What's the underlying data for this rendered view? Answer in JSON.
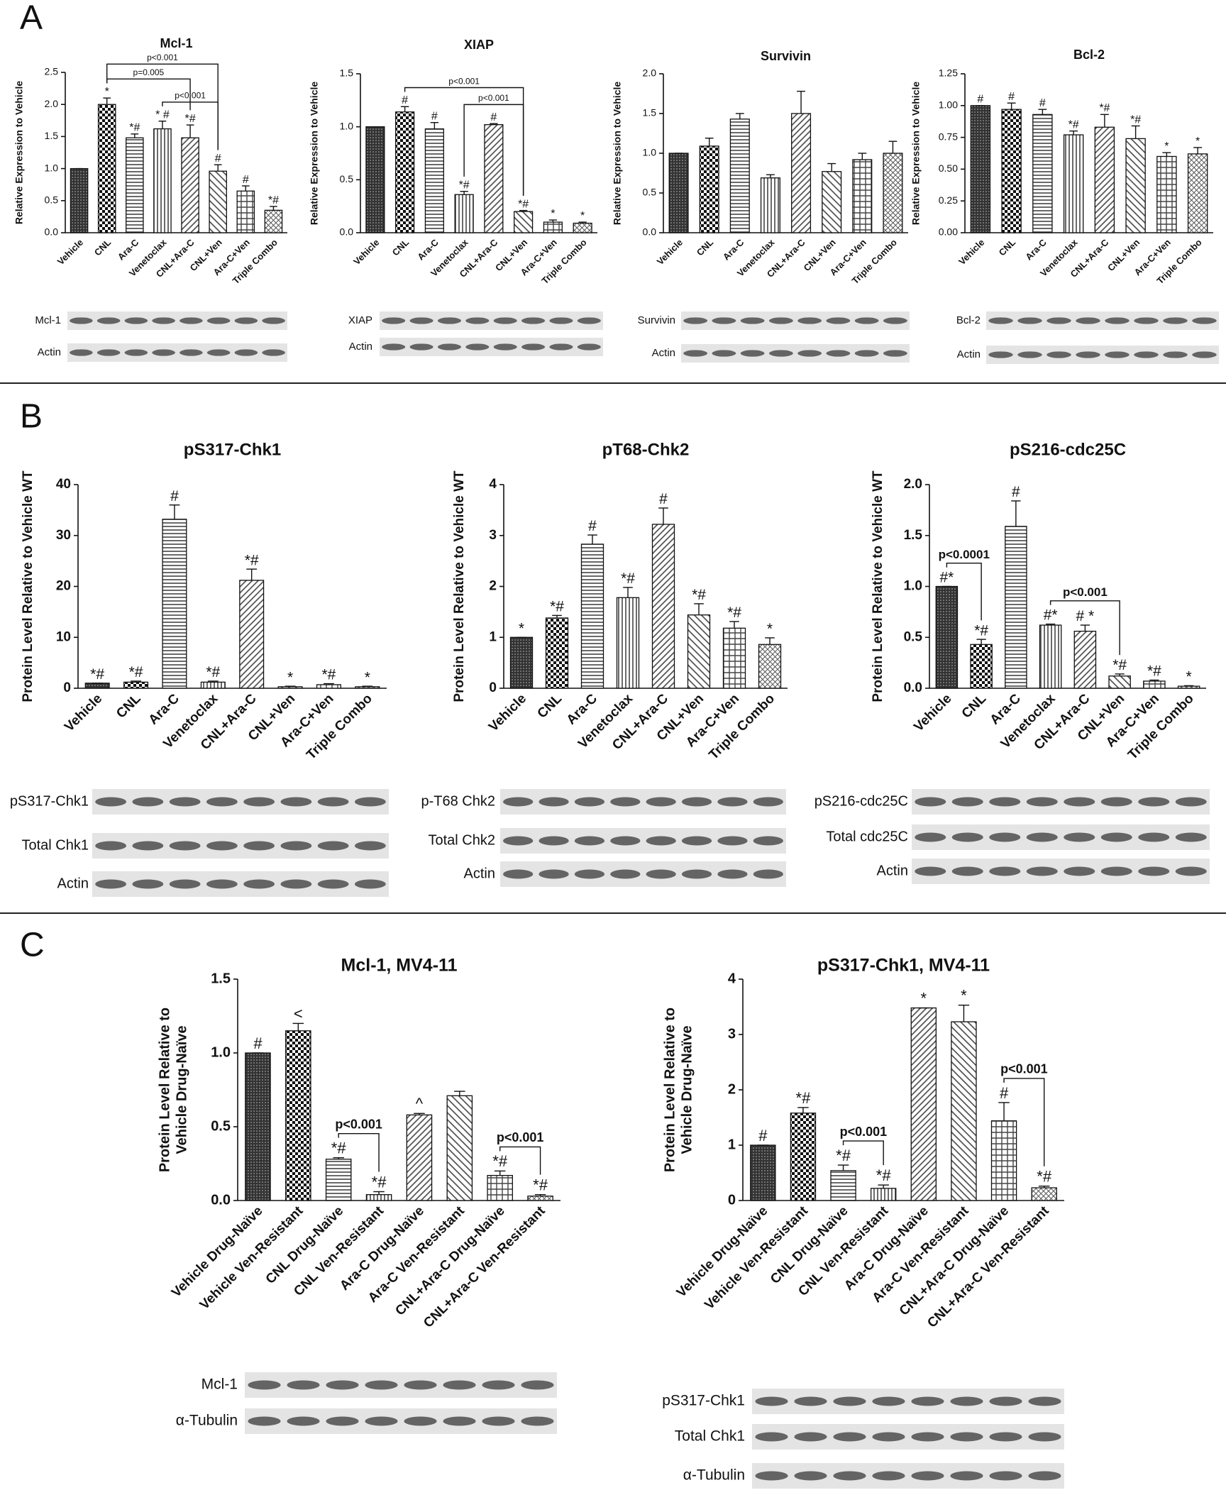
{
  "panels": [
    "A",
    "B",
    "C"
  ],
  "chart_data": [
    {
      "type": "bar",
      "title": "Mcl-1",
      "ylabel": [
        "Relative Expression to Vehicle"
      ],
      "categories": [
        "Vehicle",
        "CNL",
        "Ara-C",
        "Venetoclax",
        "CNL+Ara-C",
        "CNL+Ven",
        "Ara-C+Ven",
        "Triple Combo"
      ],
      "values": [
        1.0,
        2.0,
        1.48,
        1.62,
        1.48,
        0.96,
        0.65,
        0.35
      ],
      "errors": [
        0,
        0.1,
        0.06,
        0.12,
        0.2,
        0.1,
        0.08,
        0.06
      ],
      "annotations": [
        null,
        "*",
        "*#",
        "* #",
        "*#",
        "#",
        "#",
        "*#"
      ],
      "brackets": [
        {
          "from": 3,
          "to": 5,
          "label": "p<0.001"
        },
        {
          "from": 1,
          "to": 4,
          "label": "p=0.005"
        },
        {
          "from": 1,
          "to": 5,
          "label": "p<0.001"
        }
      ],
      "ylim": [
        0,
        2.5
      ],
      "yticks": [
        {
          "value": 0,
          "label": "0.0"
        },
        0.5,
        {
          "value": 1,
          "label": "1.0"
        },
        1.5,
        {
          "value": 2,
          "label": "2.0"
        },
        2.5
      ],
      "blots": [
        "Mcl-1",
        "Actin"
      ]
    },
    {
      "type": "bar",
      "title": "XIAP",
      "ylabel": [
        "Relative Expression to Vehicle"
      ],
      "categories": [
        "Vehicle",
        "CNL",
        "Ara-C",
        "Venetoclax",
        "CNL+Ara-C",
        "CNL+Ven",
        "Ara-C+Ven",
        "Triple Combo"
      ],
      "values": [
        1.0,
        1.14,
        0.98,
        0.36,
        1.02,
        0.2,
        0.1,
        0.09
      ],
      "errors": [
        0,
        0.05,
        0.06,
        0.03,
        0.01,
        0.01,
        0.02,
        0.01
      ],
      "annotations": [
        null,
        "#",
        "#",
        "*#",
        "#",
        "*#",
        "*",
        "*"
      ],
      "brackets": [
        {
          "from": 3,
          "to": 5,
          "label": "p<0.001"
        },
        {
          "from": 1,
          "to": 5,
          "label": "p<0.001"
        }
      ],
      "ylim": [
        0,
        1.5
      ],
      "yticks": [
        {
          "value": 0,
          "label": "0.0"
        },
        0.5,
        {
          "value": 1,
          "label": "1.0"
        },
        1.5
      ],
      "blots": [
        "XIAP",
        "Actin"
      ]
    },
    {
      "type": "bar",
      "title": "Survivin",
      "ylabel": [
        "Relative Expression to Vehicle"
      ],
      "categories": [
        "Vehicle",
        "CNL",
        "Ara-C",
        "Venetoclax",
        "CNL+Ara-C",
        "CNL+Ven",
        "Ara-C+Ven",
        "Triple Combo"
      ],
      "values": [
        1.0,
        1.09,
        1.43,
        0.69,
        1.5,
        0.77,
        0.92,
        1.0
      ],
      "errors": [
        0,
        0.1,
        0.07,
        0.04,
        0.28,
        0.1,
        0.08,
        0.15
      ],
      "annotations": [
        null,
        null,
        null,
        null,
        null,
        null,
        null,
        null
      ],
      "brackets": [],
      "ylim": [
        0,
        2
      ],
      "yticks": [
        {
          "value": 0,
          "label": "0.0"
        },
        0.5,
        {
          "value": 1,
          "label": "1.0"
        },
        1.5,
        {
          "value": 2,
          "label": "2.0"
        }
      ],
      "blots": [
        "Survivin",
        "Actin"
      ]
    },
    {
      "type": "bar",
      "title": "Bcl-2",
      "ylabel": [
        "Relative Expression to Vehicle"
      ],
      "categories": [
        "Vehicle",
        "CNL",
        "Ara-C",
        "Venetoclax",
        "CNL+Ara-C",
        "CNL+Ven",
        "Ara-C+Ven",
        "Triple Combo"
      ],
      "values": [
        1.0,
        0.97,
        0.93,
        0.77,
        0.83,
        0.74,
        0.6,
        0.62
      ],
      "errors": [
        0,
        0.05,
        0.04,
        0.03,
        0.1,
        0.1,
        0.03,
        0.05
      ],
      "annotations": [
        "#",
        "#",
        "#",
        "*#",
        "*#",
        "*#",
        "*",
        "*"
      ],
      "brackets": [],
      "ylim": [
        0,
        1.25
      ],
      "yticks": [
        {
          "value": 0,
          "label": "0.00"
        },
        0.25,
        {
          "value": 0.5,
          "label": "0.50"
        },
        0.75,
        {
          "value": 1,
          "label": "1.00"
        },
        1.25
      ],
      "blots": [
        "Bcl-2",
        "Actin"
      ]
    },
    {
      "type": "bar",
      "title": "pS317-Chk1",
      "ylabel": [
        "Protein Level Relative to Vehicle WT"
      ],
      "categories": [
        "Vehicle",
        "CNL",
        "Ara-C",
        "Venetoclax",
        "CNL+Ara-C",
        "CNL+Ven",
        "Ara-C+Ven",
        "Triple Combo"
      ],
      "values": [
        1.0,
        1.2,
        33.2,
        1.2,
        21.2,
        0.3,
        0.7,
        0.3
      ],
      "errors": [
        0,
        0.2,
        2.8,
        0.2,
        2.2,
        0.1,
        0.2,
        0.1
      ],
      "annotations": [
        "*#",
        "*#",
        "#",
        "*#",
        "*#",
        "*",
        "*#",
        "*"
      ],
      "brackets": [],
      "ylim": [
        0,
        40
      ],
      "yticks": [
        0,
        10,
        20,
        30,
        40
      ],
      "blots": [
        "pS317-Chk1",
        "Total Chk1",
        "Actin"
      ]
    },
    {
      "type": "bar",
      "title": "pT68-Chk2",
      "ylabel": [
        "Protein Level Relative to Vehicle WT"
      ],
      "categories": [
        "Vehicle",
        "CNL",
        "Ara-C",
        "Venetoclax",
        "CNL+Ara-C",
        "CNL+Ven",
        "Ara-C+Ven",
        "Triple Combo"
      ],
      "values": [
        1.0,
        1.38,
        2.83,
        1.78,
        3.22,
        1.44,
        1.18,
        0.86
      ],
      "errors": [
        0,
        0.05,
        0.18,
        0.2,
        0.32,
        0.22,
        0.13,
        0.13
      ],
      "annotations": [
        "*",
        "*#",
        "#",
        "*#",
        "#",
        "*#",
        "*#",
        "*"
      ],
      "brackets": [],
      "ylim": [
        0,
        4
      ],
      "yticks": [
        0,
        1,
        2,
        3,
        4
      ],
      "blots": [
        "p-T68 Chk2",
        "Total Chk2",
        "Actin"
      ]
    },
    {
      "type": "bar",
      "title": "pS216-cdc25C",
      "ylabel": [
        "Protein Level Relative to Vehicle WT"
      ],
      "categories": [
        "Vehicle",
        "CNL",
        "Ara-C",
        "Venetoclax",
        "CNL+Ara-C",
        "CNL+Ven",
        "Ara-C+Ven",
        "Triple Combo"
      ],
      "values": [
        1.0,
        0.43,
        1.59,
        0.62,
        0.56,
        0.12,
        0.07,
        0.02
      ],
      "errors": [
        0,
        0.05,
        0.25,
        0.01,
        0.06,
        0.02,
        0.01,
        0.005
      ],
      "annotations": [
        "#*",
        "*#",
        "#",
        "#*",
        "# *",
        "*#",
        "*#",
        "*"
      ],
      "brackets": [
        {
          "from": 0,
          "to": 1,
          "label": "p<0.0001"
        },
        {
          "from": 3,
          "to": 5,
          "label": "p<0.001"
        }
      ],
      "ylim": [
        0,
        2
      ],
      "yticks": [
        {
          "value": 0,
          "label": "0.0"
        },
        0.5,
        {
          "value": 1,
          "label": "1.0"
        },
        1.5,
        {
          "value": 2,
          "label": "2.0"
        }
      ],
      "blots": [
        "pS216-cdc25C",
        "Total cdc25C",
        "Actin"
      ]
    },
    {
      "type": "bar",
      "title": "Mcl-1, MV4-11",
      "ylabel": [
        "Protein Level Relative to",
        "Vehicle Drug-Naïve"
      ],
      "categories": [
        "Vehicle Drug-Naïve",
        "Vehicle Ven-Resistant",
        "CNL Drug-Naïve",
        "CNL Ven-Resistant",
        "Ara-C Drug-Naïve",
        "Ara-C Ven-Resistant",
        "CNL+Ara-C Drug-Naïve",
        "CNL+Ara-C Ven-Resistant"
      ],
      "values": [
        1.0,
        1.15,
        0.28,
        0.04,
        0.58,
        0.71,
        0.17,
        0.03
      ],
      "errors": [
        0,
        0.05,
        0.01,
        0.02,
        0.01,
        0.03,
        0.03,
        0.01
      ],
      "annotations": [
        "#",
        "<",
        "*#",
        "*#",
        "^",
        null,
        "*#",
        "*#"
      ],
      "brackets": [
        {
          "from": 2,
          "to": 3,
          "label": "p<0.001"
        },
        {
          "from": 6,
          "to": 7,
          "label": "p<0.001"
        }
      ],
      "ylim": [
        0,
        1.5
      ],
      "yticks": [
        {
          "value": 0,
          "label": "0.0"
        },
        0.5,
        {
          "value": 1,
          "label": "1.0"
        },
        1.5
      ],
      "blots": [
        "Mcl-1",
        "α-Tubulin"
      ]
    },
    {
      "type": "bar",
      "title": "pS317-Chk1, MV4-11",
      "ylabel": [
        "Protein Level Relative to",
        "Vehicle Drug-Naïve"
      ],
      "categories": [
        "Vehicle Drug-Naïve",
        "Vehicle Ven-Resistant",
        "CNL Drug-Naïve",
        "CNL Ven-Resistant",
        "Ara-C Drug-Naïve",
        "Ara-C Ven-Resistant",
        "CNL+Ara-C Drug-Naïve",
        "CNL+Ara-C Ven-Resistant"
      ],
      "values": [
        1.0,
        1.58,
        0.54,
        0.22,
        3.48,
        3.23,
        1.44,
        0.23
      ],
      "errors": [
        0,
        0.1,
        0.1,
        0.06,
        0,
        0.3,
        0.33,
        0.03
      ],
      "annotations": [
        "#",
        "*#",
        "*#",
        "*#",
        "*",
        "*",
        "#",
        "*#"
      ],
      "brackets": [
        {
          "from": 2,
          "to": 3,
          "label": "p<0.001"
        },
        {
          "from": 6,
          "to": 7,
          "label": "p<0.001"
        }
      ],
      "ylim": [
        0,
        4
      ],
      "yticks": [
        0,
        1,
        2,
        3,
        4
      ],
      "blots": [
        "pS317-Chk1",
        "Total Chk1",
        "α-Tubulin"
      ]
    }
  ]
}
